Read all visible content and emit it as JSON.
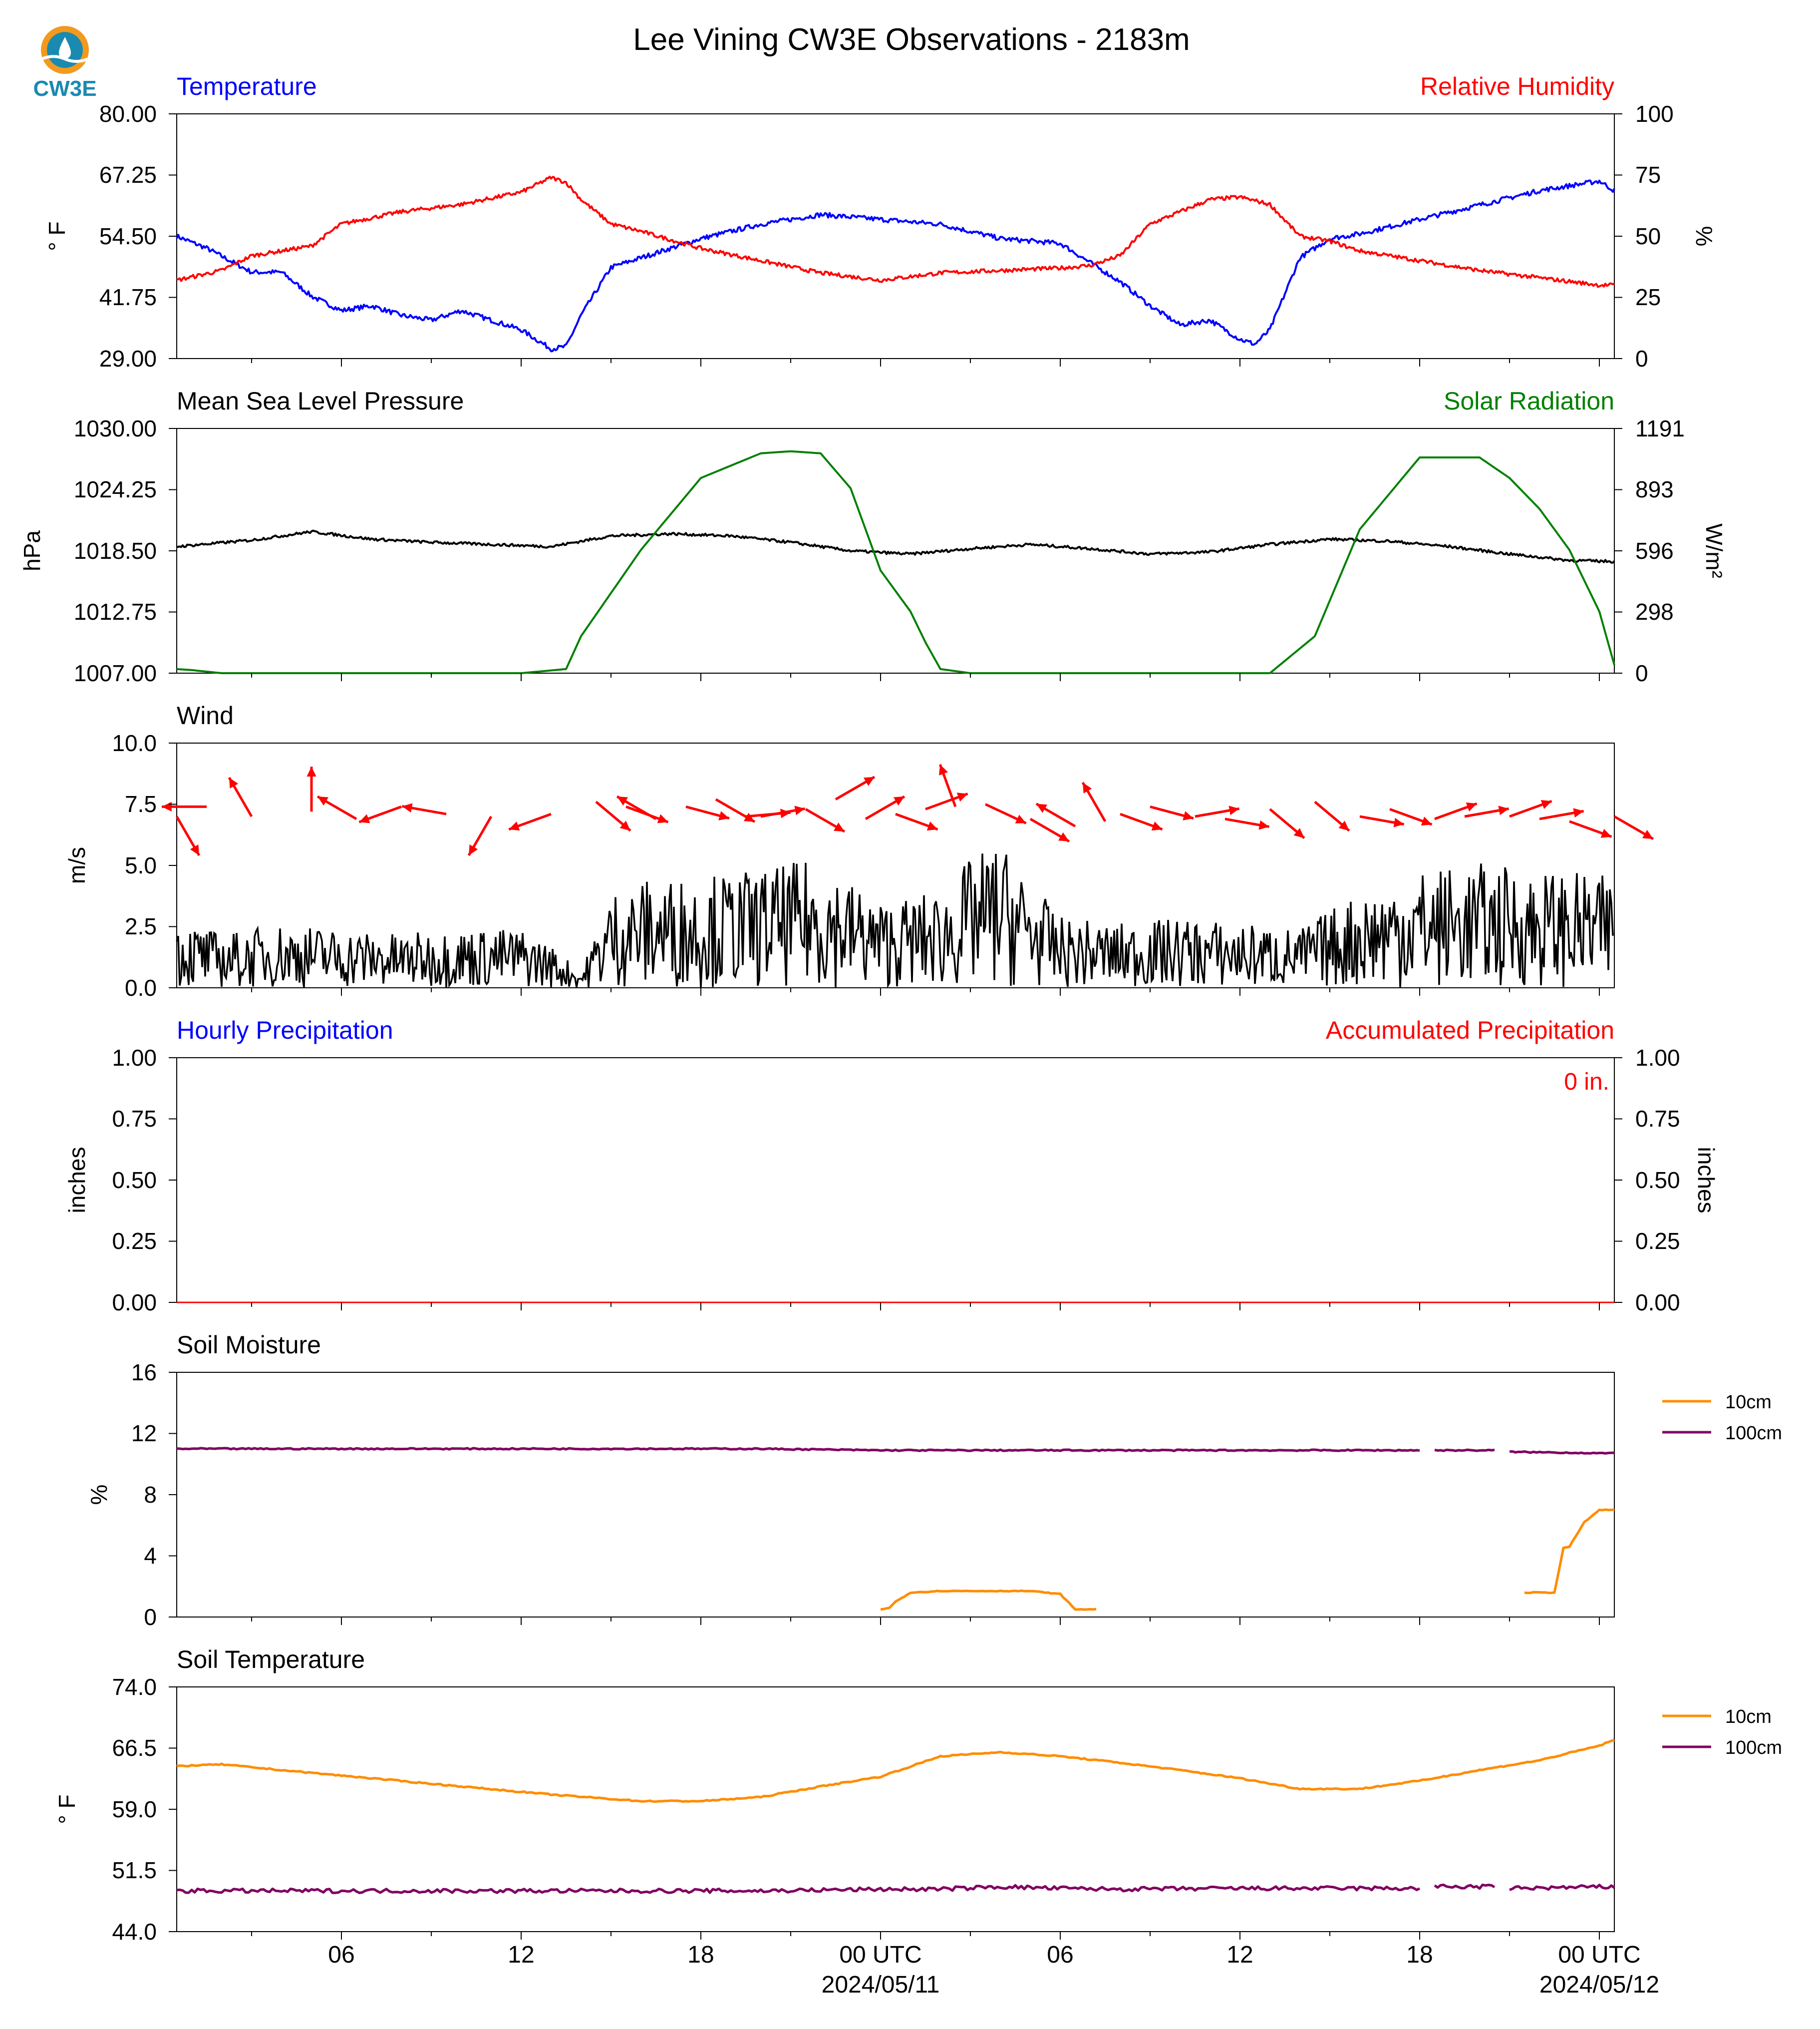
{
  "title": "Lee Vining CW3E Observations - 2183m",
  "logo": {
    "text": "CW3E",
    "colors": {
      "ring": "#f29a1f",
      "drop": "#1a8ab0",
      "text": "#1a8ab0"
    }
  },
  "x_axis": {
    "range_hours": [
      -23.5,
      24.5
    ],
    "tick_hours": [
      -18,
      -12,
      -6,
      0,
      6,
      12,
      18,
      24
    ],
    "minor_tick_hours": [
      -21,
      -15,
      -9,
      -3,
      3,
      9,
      15,
      21
    ],
    "tick_labels": [
      "06",
      "12",
      "18",
      "00 UTC",
      "06",
      "12",
      "18",
      "00 UTC"
    ],
    "date_labels": [
      {
        "hour": 0,
        "text": "2024/05/11"
      },
      {
        "hour": 24,
        "text": "2024/05/12"
      }
    ]
  },
  "panels": {
    "temperature": {
      "left_title": "Temperature",
      "right_title": "Relative Humidity",
      "left_color": "#0000ff",
      "right_color": "#ff0000",
      "ylabel": "$^\\circ$F",
      "ylabel_text": "° F",
      "ylabel_right": "%",
      "yticks": [
        "80.00",
        "67.25",
        "54.50",
        "41.75",
        "29.00"
      ],
      "yticks_right": [
        "100",
        "75",
        "50",
        "25",
        "0"
      ]
    },
    "pressure": {
      "left_title": "Mean Sea Level Pressure",
      "right_title": "Solar Radiation",
      "left_color": "#000000",
      "right_color": "#008000",
      "ylabel": "hPa",
      "ylabel_right": "W/m²",
      "yticks": [
        "1030.00",
        "1024.25",
        "1018.50",
        "1012.75",
        "1007.00"
      ],
      "yticks_right": [
        "1191",
        "893",
        "596",
        "298",
        "0"
      ]
    },
    "wind": {
      "left_title": "Wind",
      "ylabel": "m/s",
      "yticks": [
        "10.0",
        "7.5",
        "5.0",
        "2.5",
        "0.0"
      ]
    },
    "precip": {
      "left_title": "Hourly Precipitation",
      "right_title": "Accumulated Precipitation",
      "left_color": "#0000ff",
      "right_color": "#ff0000",
      "ylabel": "inches",
      "ylabel_right": "inches",
      "yticks": [
        "1.00",
        "0.75",
        "0.50",
        "0.25",
        "0.00"
      ],
      "yticks_right": [
        "1.00",
        "0.75",
        "0.50",
        "0.25",
        "0.00"
      ],
      "annotation": "0 in."
    },
    "soil_moisture": {
      "left_title": "Soil Moisture",
      "ylabel": "%",
      "yticks": [
        "16",
        "12",
        "8",
        "4",
        "0"
      ],
      "legend": [
        "10cm",
        "100cm"
      ]
    },
    "soil_temp": {
      "left_title": "Soil Temperature",
      "ylabel_text": "° F",
      "yticks": [
        "74.0",
        "66.5",
        "59.0",
        "51.5",
        "44.0"
      ],
      "legend": [
        "10cm",
        "100cm"
      ]
    }
  },
  "chart_data": [
    {
      "type": "line",
      "title": "Temperature",
      "ylim": [
        29.0,
        80.0
      ],
      "y2lim": [
        0,
        100
      ],
      "series": [
        {
          "name": "Temperature",
          "color": "#0000ff",
          "axis": "left",
          "x": [
            -23.5,
            -22.5,
            -21,
            -20,
            -19,
            -18,
            -17,
            -16,
            -15,
            -14,
            -13,
            -12,
            -11,
            -10.5,
            -10,
            -9,
            -8,
            -6,
            -4,
            -2,
            0,
            2,
            4,
            6,
            7,
            8,
            9,
            10,
            11,
            12,
            12.5,
            13,
            14,
            15,
            16,
            18,
            20,
            22,
            24,
            24.5
          ],
          "y": [
            54.5,
            52,
            47,
            47,
            42,
            39,
            40,
            38,
            37,
            39,
            37,
            35,
            31,
            31.5,
            38,
            48,
            50,
            54,
            57,
            59,
            58,
            57,
            54,
            53,
            49,
            45,
            40,
            36,
            37,
            33,
            32,
            35,
            50,
            54,
            55,
            58,
            61,
            64,
            66,
            64
          ]
        },
        {
          "name": "Relative Humidity",
          "color": "#ff0000",
          "axis": "right",
          "x": [
            -23.5,
            -22,
            -21,
            -20,
            -19,
            -18,
            -16,
            -14,
            -12,
            -11,
            -10.5,
            -10,
            -9,
            -8,
            -6,
            -4,
            -2,
            0,
            2,
            4,
            6,
            7,
            8,
            9,
            10,
            11,
            12,
            13,
            14,
            15,
            16,
            18,
            20,
            22,
            24,
            24.5
          ],
          "y": [
            32,
            36,
            42,
            44,
            46,
            55,
            60,
            63,
            68,
            74,
            72,
            65,
            55,
            52,
            45,
            40,
            35,
            32,
            35,
            36,
            37,
            38,
            42,
            55,
            60,
            65,
            66,
            63,
            50,
            48,
            44,
            40,
            36,
            33,
            30,
            30
          ]
        },
        {
          "name": "Mean Sea Level Pressure",
          "color": "#000000",
          "axis": "left",
          "panel": "pressure",
          "ylim": [
            1007,
            1030
          ],
          "x": [
            -23.5,
            -21,
            -19,
            -17,
            -15,
            -13,
            -11,
            -9,
            -7,
            -5,
            -3,
            -1,
            1,
            3,
            5,
            7,
            9,
            11,
            13,
            15,
            17,
            19,
            21,
            23,
            24.5
          ],
          "y": [
            1018.9,
            1019.5,
            1020.3,
            1019.6,
            1019.3,
            1019.1,
            1018.9,
            1019.9,
            1020.1,
            1019.9,
            1019.3,
            1018.5,
            1018.2,
            1018.7,
            1019.1,
            1018.7,
            1018.2,
            1018.4,
            1019.1,
            1019.6,
            1019.4,
            1018.9,
            1018.2,
            1017.6,
            1017.5
          ]
        },
        {
          "name": "Solar Radiation",
          "color": "#008000",
          "axis": "right",
          "panel": "pressure",
          "ylim": [
            0,
            1191
          ],
          "x": [
            -23.5,
            -23,
            -22,
            -12,
            -10.5,
            -10,
            -8,
            -6,
            -4,
            -3,
            -2,
            -1,
            0,
            1,
            1.5,
            2,
            3,
            4,
            12,
            13,
            14.5,
            16,
            18,
            20,
            21,
            22,
            23,
            24,
            24.5
          ],
          "y": [
            20,
            15,
            0,
            0,
            20,
            180,
            600,
            950,
            1070,
            1080,
            1070,
            900,
            500,
            300,
            150,
            20,
            0,
            0,
            0,
            0,
            180,
            700,
            1050,
            1050,
            950,
            800,
            600,
            300,
            40
          ]
        }
      ]
    },
    {
      "type": "line",
      "title": "Wind",
      "ylim": [
        0,
        10
      ],
      "series": [
        {
          "name": "Wind",
          "color": "#000000",
          "x": [
            -23.5,
            -22,
            -20,
            -18,
            -16,
            -14,
            -12,
            -11,
            -10,
            -9,
            -8,
            -6,
            -4,
            -2,
            0,
            2,
            3,
            4,
            6,
            8,
            10,
            12,
            14,
            16,
            18,
            20,
            22,
            24,
            24.5
          ],
          "y": [
            1.3,
            1.0,
            1.2,
            1.1,
            1.0,
            1.1,
            1.1,
            0.8,
            0.3,
            1.8,
            2.0,
            2.1,
            2.2,
            2.4,
            1.6,
            1.8,
            2.4,
            2.7,
            1.3,
            1.2,
            1.3,
            1.2,
            1.1,
            1.8,
            2.2,
            2.3,
            2.2,
            2.1,
            2.0
          ]
        },
        {
          "name": "Wind barbs",
          "color": "#ff0000",
          "type": "vector",
          "x": [
            -23.5,
            -22.5,
            -21,
            -19,
            -17.5,
            -16,
            -14.5,
            -13,
            -11,
            -9.5,
            -8.5,
            -7.5,
            -6.5,
            -5.5,
            -4.5,
            -4,
            -2.5,
            -1.5,
            -0.5,
            0.5,
            1.5,
            2.5,
            3.5,
            5,
            6.5,
            7.5,
            8,
            9,
            10.5,
            11.5,
            13,
            14.5,
            16,
            17,
            18.5,
            19.5,
            21,
            22,
            23,
            24.5
          ],
          "y": [
            7.0,
            7.4,
            7.0,
            7.2,
            6.9,
            7.4,
            7.1,
            7.0,
            7.1,
            7.6,
            7.4,
            6.9,
            7.4,
            7.7,
            7.0,
            7.0,
            7.3,
            7.7,
            6.9,
            7.1,
            7.3,
            7.4,
            7.5,
            6.9,
            6.6,
            6.8,
            7.1,
            7.4,
            7.0,
            6.9,
            7.3,
            7.6,
            7.0,
            7.3,
            6.9,
            7.0,
            7.0,
            6.9,
            6.8,
            7.0
          ],
          "angle_deg": [
            -60,
            180,
            120,
            90,
            150,
            -160,
            170,
            -120,
            200,
            -40,
            -20,
            150,
            -15,
            -30,
            5,
            10,
            -30,
            30,
            30,
            -20,
            20,
            110,
            -25,
            -30,
            150,
            120,
            -20,
            -15,
            10,
            -10,
            -40,
            -40,
            -10,
            -20,
            20,
            10,
            20,
            10,
            -20,
            -30
          ]
        }
      ]
    },
    {
      "type": "line",
      "title": "Hourly Precipitation",
      "ylim": [
        0,
        1
      ],
      "series": [
        {
          "name": "Hourly Precipitation",
          "color": "#0000ff",
          "x": [
            -23.5,
            24.5
          ],
          "y": [
            0,
            0
          ]
        },
        {
          "name": "Accumulated Precipitation",
          "color": "#ff0000",
          "x": [
            -23.5,
            24.5
          ],
          "y": [
            0,
            0
          ]
        }
      ]
    },
    {
      "type": "line",
      "title": "Soil Moisture",
      "ylim": [
        0,
        16
      ],
      "series": [
        {
          "name": "10cm",
          "color": "#ff8c00",
          "segments": [
            {
              "x": [
                0,
                0.3,
                0.5,
                1,
                2,
                3,
                4,
                5,
                5.5,
                6,
                6.5,
                7,
                7.2
              ],
              "y": [
                0.5,
                0.6,
                1.0,
                1.6,
                1.7,
                1.7,
                1.7,
                1.7,
                1.6,
                1.5,
                0.5,
                0.5,
                0.5
              ]
            },
            {
              "x": [
                21.5,
                22.5,
                22.8,
                23,
                23.5,
                24,
                24.5
              ],
              "y": [
                1.6,
                1.6,
                4.5,
                4.6,
                6.2,
                7.0,
                7.0
              ]
            }
          ]
        },
        {
          "name": "100cm",
          "color": "#800060",
          "segments": [
            {
              "x": [
                -23.5,
                -20,
                -16,
                -12,
                -8,
                -4,
                0,
                4,
                8,
                12,
                16,
                18
              ],
              "y": [
                11.0,
                11.0,
                11.0,
                11.0,
                11.0,
                11.0,
                10.9,
                10.9,
                10.9,
                10.9,
                10.9,
                10.9
              ]
            },
            {
              "x": [
                18.5,
                20.5
              ],
              "y": [
                10.9,
                10.9
              ]
            },
            {
              "x": [
                21,
                24.5
              ],
              "y": [
                10.8,
                10.7
              ]
            }
          ]
        }
      ]
    },
    {
      "type": "line",
      "title": "Soil Temperature",
      "ylim": [
        44,
        74
      ],
      "series": [
        {
          "name": "10cm",
          "color": "#ff8c00",
          "x": [
            -23.5,
            -22,
            -20,
            -17,
            -14,
            -11,
            -8,
            -6,
            -4,
            -2,
            0,
            2,
            4,
            6,
            8,
            10,
            12,
            14,
            16,
            18,
            20,
            22,
            24,
            24.5
          ],
          "y": [
            64.3,
            64.5,
            63.8,
            62.8,
            61.8,
            60.8,
            60.0,
            60.0,
            60.5,
            61.8,
            63.0,
            65.5,
            66.0,
            65.5,
            64.7,
            63.8,
            62.8,
            61.5,
            61.5,
            62.5,
            63.8,
            65.0,
            66.8,
            67.5
          ]
        },
        {
          "name": "100cm",
          "color": "#800060",
          "segments": [
            {
              "x": [
                -23.5,
                -20,
                -16,
                -12,
                -8,
                -4,
                0,
                2,
                4,
                6,
                8,
                12,
                16,
                18
              ],
              "y": [
                49.0,
                49.0,
                49.0,
                49.0,
                49.0,
                49.0,
                49.2,
                49.2,
                49.5,
                49.3,
                49.2,
                49.3,
                49.3,
                49.3
              ]
            },
            {
              "x": [
                18.5,
                20.5
              ],
              "y": [
                49.5,
                49.5
              ]
            },
            {
              "x": [
                21,
                24.5
              ],
              "y": [
                49.3,
                49.5
              ]
            }
          ]
        }
      ]
    }
  ]
}
